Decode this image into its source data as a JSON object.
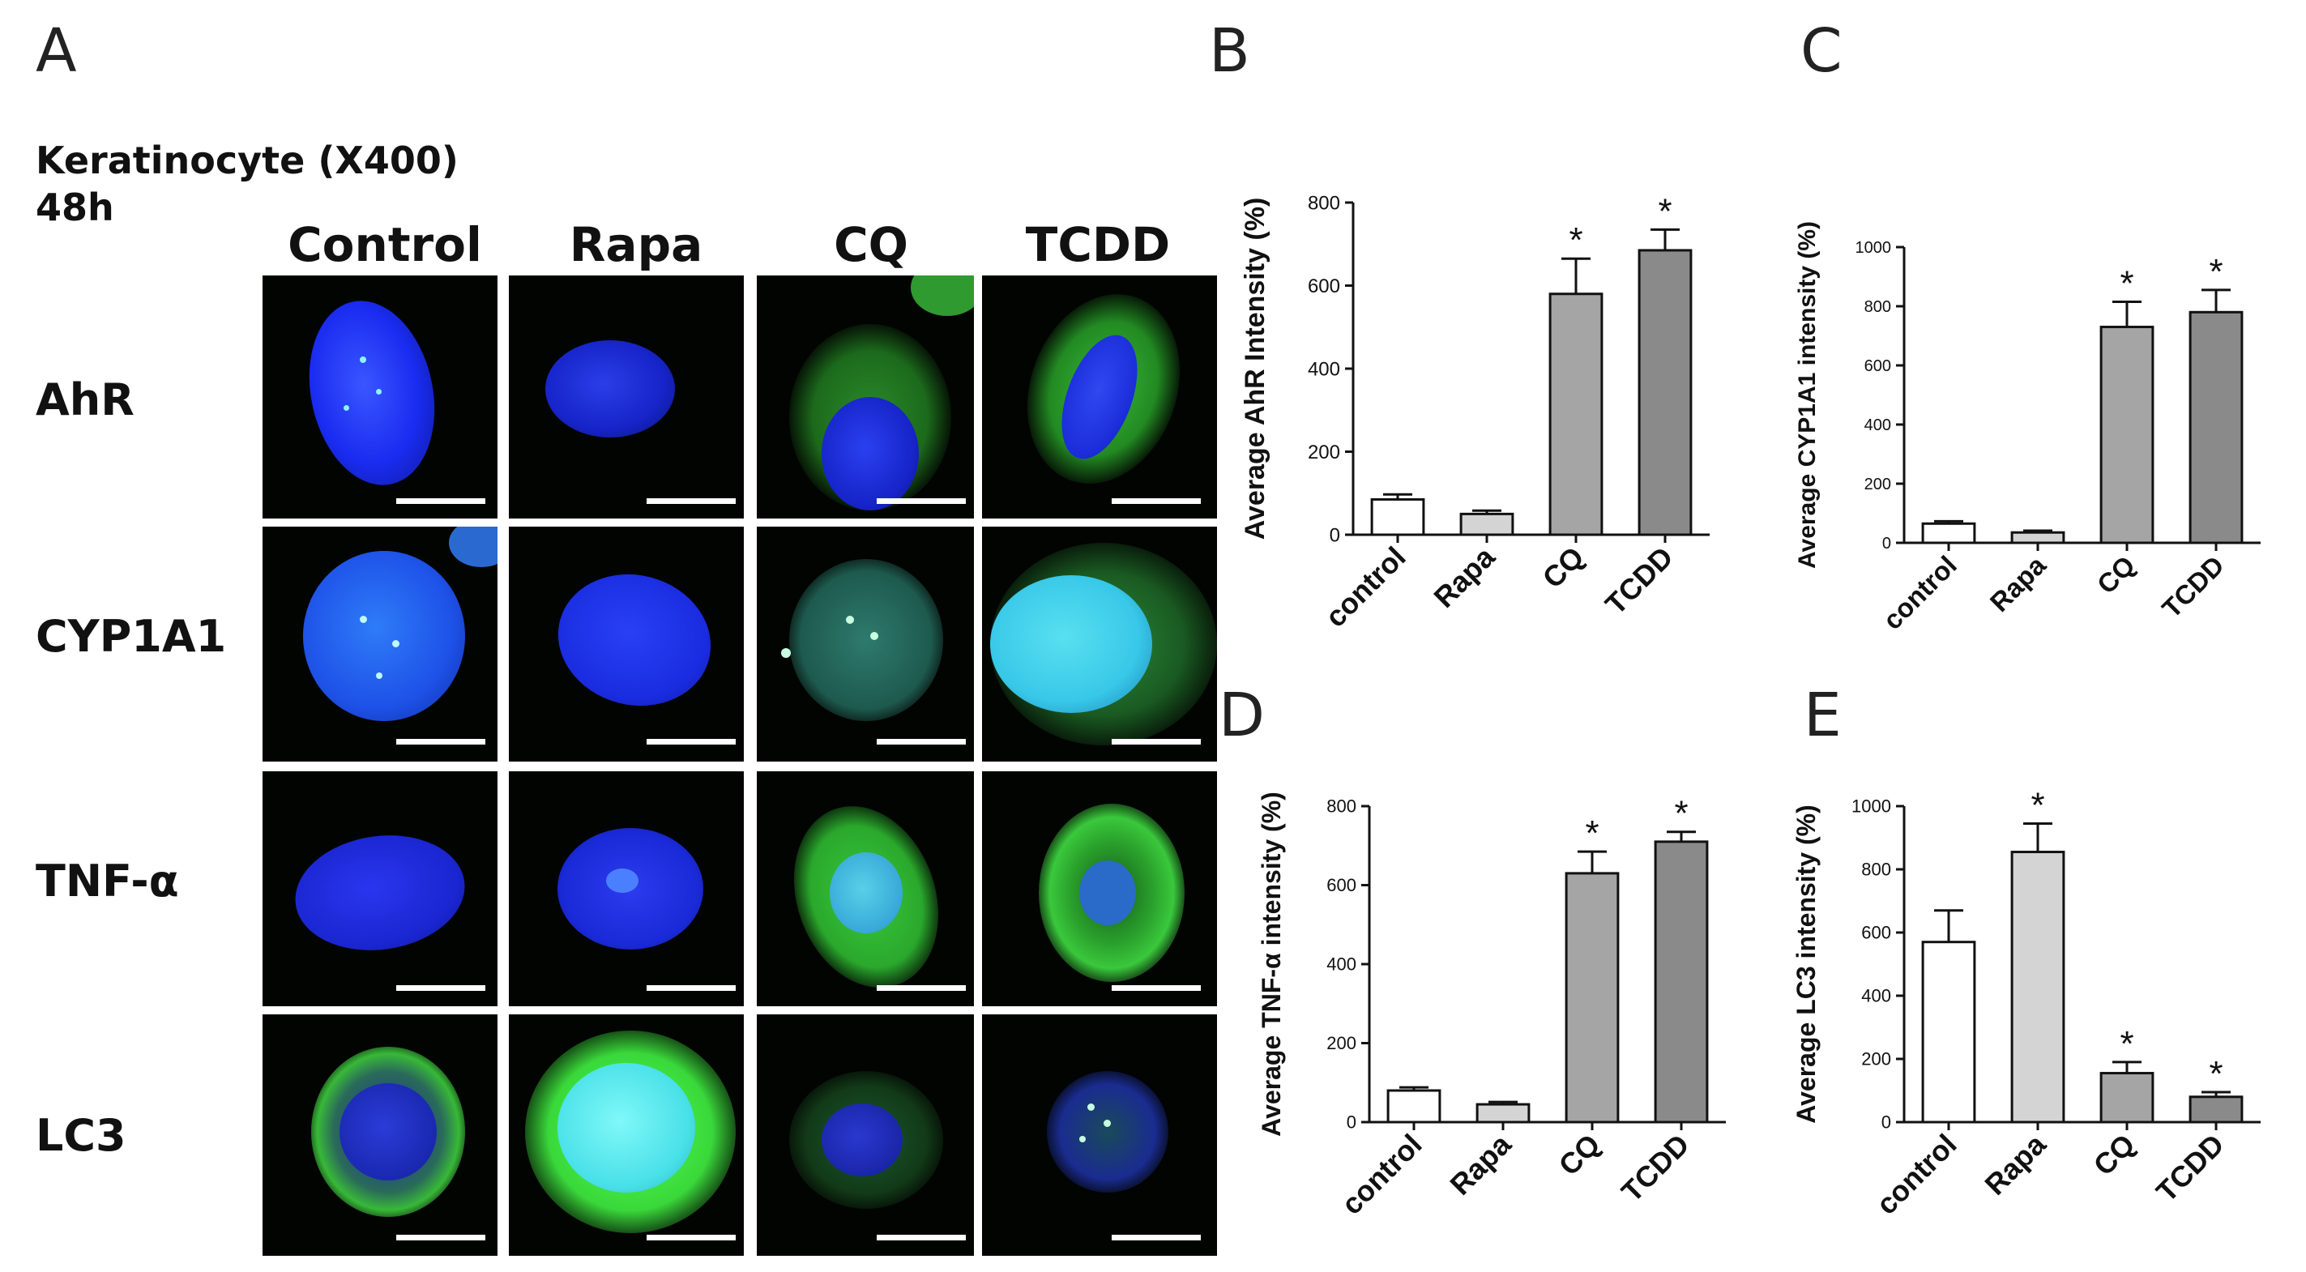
{
  "figure": {
    "panel_letters": {
      "a": "A",
      "b": "B",
      "c": "C",
      "d": "D",
      "e": "E"
    },
    "heading_line1": "Keratinocyte (X400)",
    "heading_line2": "48h",
    "columns": [
      "Control",
      "Rapa",
      "CQ",
      "TCDD"
    ],
    "rows": [
      "AhR",
      "CYP1A1",
      "TNF-α",
      "LC3"
    ],
    "colors": {
      "nucleus": "#1a2cf0",
      "cytoplasm": "#36c838",
      "overlap": "#38c8e8",
      "background": "#020402"
    }
  },
  "chart_data": [
    {
      "panel": "B",
      "type": "bar",
      "categories": [
        "control",
        "Rapa",
        "CQ",
        "TCDD"
      ],
      "values": [
        85,
        50,
        580,
        685
      ],
      "errors": [
        12,
        8,
        85,
        50
      ],
      "significant": [
        false,
        false,
        true,
        true
      ],
      "significance_marker": "*",
      "ylabel": "Average AhR Intensity  (%)",
      "ylim": [
        0,
        800
      ],
      "yticks": [
        "0",
        "200",
        "400",
        "600",
        "800"
      ],
      "bar_colors": [
        "#ffffff",
        "#d4d4d4",
        "#a5a5a5",
        "#8a8a8a"
      ]
    },
    {
      "panel": "C",
      "type": "bar",
      "categories": [
        "control",
        "Rapa",
        "CQ",
        "TCDD"
      ],
      "values": [
        65,
        35,
        730,
        780
      ],
      "errors": [
        8,
        6,
        85,
        75
      ],
      "significant": [
        false,
        false,
        true,
        true
      ],
      "significance_marker": "*",
      "ylabel": "Average CYP1A1 intensity  (%)",
      "ylim": [
        0,
        1000
      ],
      "yticks": [
        "0",
        "200",
        "400",
        "600",
        "800",
        "1000"
      ],
      "bar_colors": [
        "#ffffff",
        "#d4d4d4",
        "#a5a5a5",
        "#8a8a8a"
      ]
    },
    {
      "panel": "D",
      "type": "bar",
      "categories": [
        "control",
        "Rapa",
        "CQ",
        "TCDD"
      ],
      "values": [
        80,
        45,
        630,
        710
      ],
      "errors": [
        8,
        6,
        55,
        25
      ],
      "significant": [
        false,
        false,
        true,
        true
      ],
      "significance_marker": "*",
      "ylabel": "Average TNF-α  intensity (%)",
      "ylim": [
        0,
        800
      ],
      "yticks": [
        "0",
        "200",
        "400",
        "600",
        "800"
      ],
      "bar_colors": [
        "#ffffff",
        "#d4d4d4",
        "#a5a5a5",
        "#8a8a8a"
      ]
    },
    {
      "panel": "E",
      "type": "bar",
      "categories": [
        "control",
        "Rapa",
        "CQ",
        "TCDD"
      ],
      "values": [
        570,
        855,
        155,
        80
      ],
      "errors": [
        100,
        90,
        35,
        15
      ],
      "significant": [
        false,
        true,
        true,
        true
      ],
      "significance_marker": "*",
      "ylabel": "Average LC3 intensity (%)",
      "ylim": [
        0,
        1000
      ],
      "yticks": [
        "0",
        "200",
        "400",
        "600",
        "800",
        "1000"
      ],
      "bar_colors": [
        "#ffffff",
        "#d4d4d4",
        "#a5a5a5",
        "#8a8a8a"
      ]
    }
  ]
}
